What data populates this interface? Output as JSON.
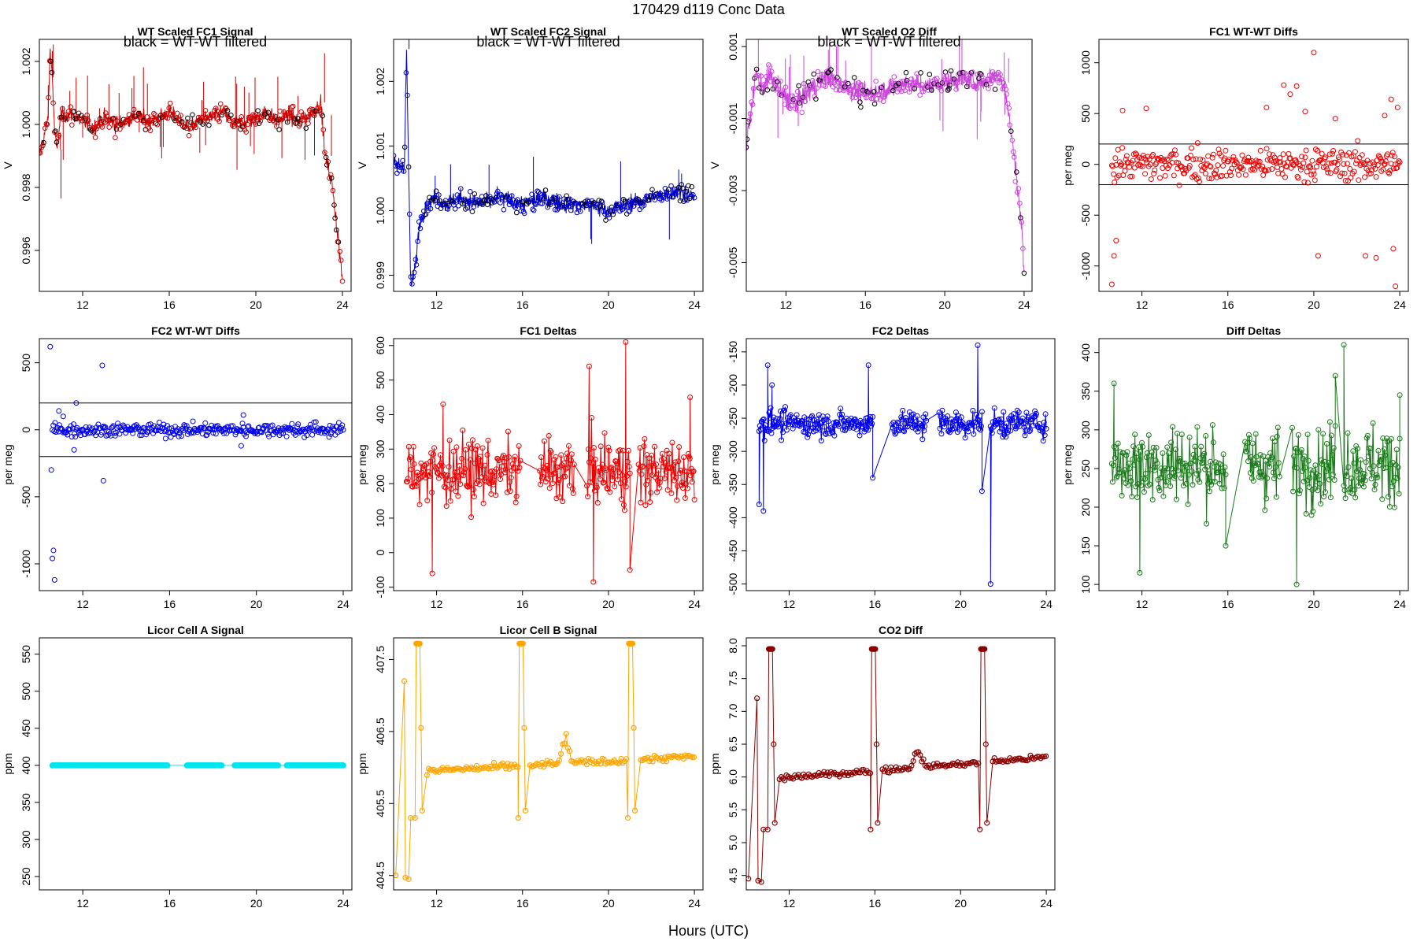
{
  "figure": {
    "title": "170429   d119   Conc Data",
    "xlabel": "Hours (UTC)"
  },
  "chart_data": [
    {
      "id": "p1",
      "type": "line",
      "title": "WT Scaled FC1 Signal",
      "note": "black = WT-WT filtered",
      "ylabel": "V",
      "color": "#cc0000",
      "secondary_color": "#000000",
      "xlim": [
        10,
        24.4
      ],
      "ylim": [
        0.9947,
        1.0027
      ],
      "xticks": [
        12,
        16,
        20,
        24
      ],
      "yticks": [
        0.996,
        0.998,
        1.0,
        1.002
      ],
      "ytick_labels": [
        "0.996",
        "0.998",
        "1.000",
        "1.002"
      ],
      "mode": "noisy",
      "series": {
        "x": [
          10.0,
          10.4,
          10.5,
          10.6,
          10.7,
          10.8,
          11,
          11.5,
          12,
          12.5,
          13,
          13.5,
          14,
          14.5,
          15,
          15.5,
          16,
          16.5,
          17,
          17.5,
          18,
          18.5,
          19,
          19.5,
          20,
          20.5,
          21,
          21.5,
          22,
          22.5,
          23,
          23.2,
          23.5,
          23.8,
          24.0
        ],
        "y": [
          0.999,
          1.0002,
          1.0024,
          1.0015,
          0.9998,
          0.9992,
          1.0003,
          1.0003,
          1.0001,
          0.9999,
          1.0002,
          1.0,
          1.0001,
          1.0003,
          1.0001,
          1.0002,
          1.0004,
          1.0001,
          0.9999,
          1.0002,
          1.0002,
          1.0004,
          1.0,
          1.0001,
          1.0002,
          1.0004,
          1.0001,
          1.0003,
          1.0001,
          1.0003,
          1.0007,
          0.999,
          0.9982,
          0.9964,
          0.995
        ],
        "amp": 0.00035,
        "spikes": 40
      }
    },
    {
      "id": "p2",
      "type": "line",
      "title": "WT Scaled FC2 Signal",
      "note": "black = WT-WT filtered",
      "ylabel": "V",
      "color": "#0000cc",
      "secondary_color": "#000000",
      "xlim": [
        10,
        24.4
      ],
      "ylim": [
        0.99875,
        1.00265
      ],
      "xticks": [
        12,
        16,
        20,
        24
      ],
      "yticks": [
        0.999,
        1.0,
        1.001,
        1.002
      ],
      "ytick_labels": [
        "0.999",
        "1.000",
        "1.001",
        "1.002"
      ],
      "mode": "noisy",
      "series": {
        "x": [
          10.0,
          10.5,
          10.6,
          10.8,
          11.0,
          11.2,
          11.5,
          12,
          12.5,
          13,
          14,
          15,
          16,
          17,
          18,
          19,
          20,
          21,
          22,
          23,
          23.5,
          24.0
        ],
        "y": [
          1.0007,
          1.0007,
          1.0025,
          0.9988,
          0.9991,
          0.9998,
          1.0001,
          1.0002,
          1.0001,
          1.0002,
          1.0001,
          1.0002,
          1.0001,
          1.0002,
          1.0001,
          1.0001,
          1.0,
          1.0001,
          1.0002,
          1.0003,
          1.0003,
          1.0002
        ],
        "amp": 0.00018,
        "spikes": 12
      }
    },
    {
      "id": "p3",
      "type": "line",
      "title": "WT Scaled O2 Diff",
      "note": "black = WT-WT filtered",
      "ylabel": "V",
      "color": "#cc44dd",
      "secondary_color": "#000000",
      "xlim": [
        10,
        24.4
      ],
      "ylim": [
        -0.0058,
        0.0012
      ],
      "xticks": [
        12,
        16,
        20,
        24
      ],
      "yticks": [
        -0.005,
        -0.003,
        -0.001,
        0.001
      ],
      "ytick_labels": [
        "-0.005",
        "-0.003",
        "-0.001",
        "0.001"
      ],
      "mode": "noisy",
      "series": {
        "x": [
          10.0,
          10.5,
          10.8,
          11.2,
          11.6,
          12,
          12.5,
          13,
          13.5,
          14,
          15,
          16,
          17,
          18,
          19,
          20,
          21,
          22,
          22.5,
          23,
          23.3,
          23.6,
          23.9,
          24.0
        ],
        "y": [
          -0.0018,
          0.0003,
          -0.0002,
          0.0002,
          -0.0002,
          -0.0004,
          -0.0006,
          -0.0003,
          -0.0001,
          0.0002,
          -0.0001,
          -0.0003,
          -0.0002,
          0.0,
          -0.0001,
          0.0,
          0.0001,
          0.0,
          0.0002,
          0.0,
          -0.0012,
          -0.0025,
          -0.0042,
          -0.0053
        ],
        "amp": 0.0004,
        "spikes": 25
      }
    },
    {
      "id": "p4",
      "type": "scatter",
      "title": "FC1 WT-WT Diffs",
      "ylabel": "per meg",
      "color": "#ee0000",
      "hlines": [
        200,
        -200
      ],
      "xlim": [
        10,
        24.4
      ],
      "ylim": [
        -1250,
        1230
      ],
      "xticks": [
        12,
        16,
        20,
        24
      ],
      "yticks": [
        -1000,
        -500,
        0,
        500,
        1000
      ],
      "ytick_labels": [
        "-1000",
        "-500",
        "0",
        "500",
        "1000"
      ],
      "mode": "scatter",
      "series": {
        "x0": 10.6,
        "x1": 24.0,
        "n": 330,
        "center": 0,
        "sd": 80,
        "outliers": [
          [
            10.6,
            -1180
          ],
          [
            10.7,
            -900
          ],
          [
            10.8,
            -750
          ],
          [
            11.1,
            530
          ],
          [
            12.2,
            550
          ],
          [
            17.8,
            560
          ],
          [
            18.6,
            780
          ],
          [
            18.9,
            690
          ],
          [
            19.2,
            770
          ],
          [
            19.6,
            520
          ],
          [
            20.0,
            1100
          ],
          [
            20.2,
            -900
          ],
          [
            21.0,
            450
          ],
          [
            22.4,
            -900
          ],
          [
            22.9,
            -920
          ],
          [
            23.3,
            480
          ],
          [
            23.6,
            640
          ],
          [
            23.7,
            -830
          ],
          [
            23.8,
            -1200
          ],
          [
            23.9,
            560
          ]
        ]
      }
    },
    {
      "id": "p5",
      "type": "scatter",
      "title": "FC2 WT-WT Diffs",
      "ylabel": "per meg",
      "color": "#0000ee",
      "hlines": [
        200,
        -200
      ],
      "xlim": [
        10,
        24.4
      ],
      "ylim": [
        -1200,
        680
      ],
      "xticks": [
        12,
        16,
        20,
        24
      ],
      "yticks": [
        -1000,
        -500,
        0,
        500
      ],
      "ytick_labels": [
        "-1000",
        "-500",
        "0",
        "500"
      ],
      "mode": "scatter",
      "series": {
        "x0": 10.6,
        "x1": 24.0,
        "n": 330,
        "center": 0,
        "sd": 25,
        "outliers": [
          [
            10.5,
            620
          ],
          [
            10.55,
            -300
          ],
          [
            10.6,
            -960
          ],
          [
            10.65,
            -900
          ],
          [
            10.7,
            -1120
          ],
          [
            10.9,
            140
          ],
          [
            11.1,
            100
          ],
          [
            11.6,
            -150
          ],
          [
            11.7,
            200
          ],
          [
            12.9,
            480
          ],
          [
            12.95,
            -380
          ],
          [
            19.3,
            -120
          ],
          [
            19.4,
            110
          ]
        ]
      }
    },
    {
      "id": "p6",
      "type": "linepoints",
      "title": "FC1 Deltas",
      "ylabel": "per meg",
      "color": "#ee0000",
      "xlim": [
        10,
        24.4
      ],
      "ylim": [
        -110,
        620
      ],
      "xticks": [
        12,
        16,
        20,
        24
      ],
      "yticks": [
        -100,
        0,
        100,
        200,
        300,
        400,
        500,
        600
      ],
      "ytick_labels": [
        "-100",
        "0",
        "100",
        "200",
        "300",
        "400",
        "500",
        "600"
      ],
      "mode": "deltas",
      "series": {
        "segments": [
          [
            10.6,
            15.9
          ],
          [
            16.8,
            18.4
          ],
          [
            19.0,
            21.0
          ],
          [
            21.4,
            24.0
          ]
        ],
        "center": 235,
        "sd": 65,
        "outliers": [
          [
            11.8,
            -60
          ],
          [
            12.3,
            430
          ],
          [
            19.1,
            540
          ],
          [
            19.3,
            -85
          ],
          [
            20.8,
            610
          ],
          [
            21.0,
            -50
          ],
          [
            23.8,
            450
          ]
        ]
      }
    },
    {
      "id": "p7",
      "type": "linepoints",
      "title": "FC2 Deltas",
      "ylabel": "per meg",
      "color": "#0000ee",
      "xlim": [
        10,
        24.4
      ],
      "ylim": [
        -510,
        -130
      ],
      "xticks": [
        12,
        16,
        20,
        24
      ],
      "yticks": [
        -500,
        -450,
        -400,
        -350,
        -300,
        -250,
        -200,
        -150
      ],
      "ytick_labels": [
        "-500",
        "-450",
        "-400",
        "-350",
        "-300",
        "-250",
        "-200",
        "-150"
      ],
      "mode": "deltas",
      "series": {
        "segments": [
          [
            10.6,
            15.9
          ],
          [
            16.8,
            18.4
          ],
          [
            19.0,
            21.0
          ],
          [
            21.4,
            24.0
          ]
        ],
        "center": -258,
        "sd": 14,
        "outliers": [
          [
            10.6,
            -380
          ],
          [
            10.8,
            -390
          ],
          [
            11.0,
            -170
          ],
          [
            11.2,
            -200
          ],
          [
            15.7,
            -170
          ],
          [
            15.9,
            -340
          ],
          [
            20.8,
            -140
          ],
          [
            21.0,
            -360
          ],
          [
            21.4,
            -500
          ]
        ]
      }
    },
    {
      "id": "p8",
      "type": "linepoints",
      "title": "Diff Deltas",
      "ylabel": "per meg",
      "color": "#1a7a1a",
      "xlim": [
        10,
        24.4
      ],
      "ylim": [
        92,
        418
      ],
      "xticks": [
        12,
        16,
        20,
        24
      ],
      "yticks": [
        100,
        150,
        200,
        250,
        300,
        350,
        400
      ],
      "ytick_labels": [
        "100",
        "150",
        "200",
        "250",
        "300",
        "350",
        "400"
      ],
      "mode": "deltas",
      "series": {
        "segments": [
          [
            10.6,
            15.9
          ],
          [
            16.8,
            18.4
          ],
          [
            19.0,
            21.0
          ],
          [
            21.4,
            24.0
          ]
        ],
        "center": 255,
        "sd": 35,
        "outliers": [
          [
            10.7,
            360
          ],
          [
            11.9,
            115
          ],
          [
            15.9,
            150
          ],
          [
            19.2,
            100
          ],
          [
            21.0,
            370
          ],
          [
            21.4,
            410
          ],
          [
            24.0,
            345
          ]
        ]
      }
    },
    {
      "id": "p9",
      "type": "line",
      "title": "Licor Cell A Signal",
      "ylabel": "ppm",
      "color": "#00e5ee",
      "xlim": [
        10,
        24.4
      ],
      "ylim": [
        232,
        572
      ],
      "xticks": [
        12,
        16,
        20,
        24
      ],
      "yticks": [
        250,
        300,
        350,
        400,
        450,
        500,
        550
      ],
      "ytick_labels": [
        "250",
        "300",
        "350",
        "400",
        "450",
        "500",
        "550"
      ],
      "mode": "flat",
      "series": {
        "level": 400,
        "segments": [
          [
            10.6,
            15.9
          ],
          [
            16.8,
            18.4
          ],
          [
            19.0,
            21.0
          ],
          [
            21.4,
            24.0
          ]
        ]
      }
    },
    {
      "id": "p10",
      "type": "linepoints",
      "title": "Licor Cell B Signal",
      "ylabel": "ppm",
      "color": "#ffa500",
      "xlim": [
        10,
        24.4
      ],
      "ylim": [
        404.3,
        407.8
      ],
      "xticks": [
        12,
        16,
        20,
        24
      ],
      "yticks": [
        404.5,
        405.5,
        406.5,
        407.5
      ],
      "ytick_labels": [
        "404.5",
        "405.5",
        "406.5",
        "407.5"
      ],
      "mode": "licor",
      "series": {
        "base_start": 405.95,
        "base_end": 406.15,
        "cal_hi": 407.72,
        "cal_mid": 406.55,
        "cal_lo": 405.3,
        "init_lo": 404.45,
        "init_hi": 407.2,
        "cal_times": [
          11.0,
          15.8,
          20.9
        ],
        "bump": [
          18.0,
          406.45
        ]
      }
    },
    {
      "id": "p11",
      "type": "linepoints",
      "title": "CO2 Diff",
      "ylabel": "ppm",
      "color": "#8b0000",
      "xlim": [
        10,
        24.4
      ],
      "ylim": [
        4.28,
        8.12
      ],
      "xticks": [
        12,
        16,
        20,
        24
      ],
      "yticks": [
        4.5,
        5.0,
        5.5,
        6.0,
        6.5,
        7.0,
        7.5,
        8.0
      ],
      "ytick_labels": [
        "4.5",
        "5.0",
        "5.5",
        "6.0",
        "6.5",
        "7.0",
        "7.5",
        "8.0"
      ],
      "mode": "licor",
      "series": {
        "base_start": 5.98,
        "base_end": 6.3,
        "cal_hi": 7.95,
        "cal_mid": 6.5,
        "cal_lo": 5.2,
        "init_lo": 4.4,
        "init_hi": 7.2,
        "cal_times": [
          11.0,
          15.8,
          20.9
        ],
        "bump": [
          18.0,
          6.5
        ]
      }
    }
  ]
}
